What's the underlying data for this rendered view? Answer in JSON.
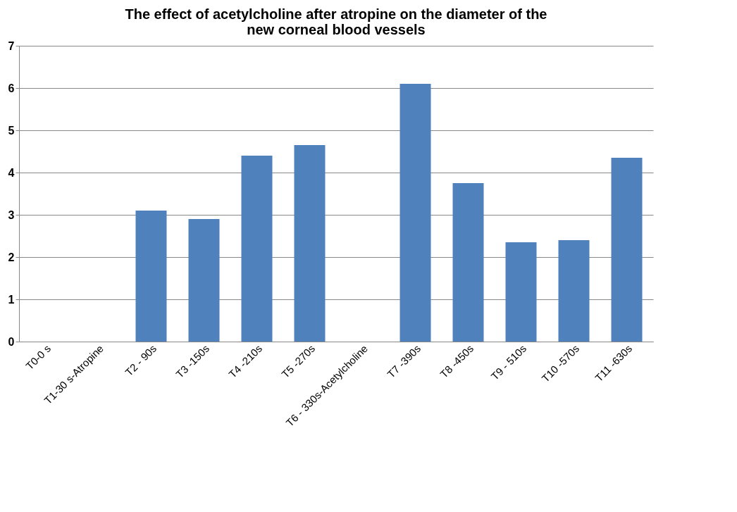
{
  "chart_data": {
    "type": "bar",
    "title": "The effect of acetylcholine after atropine on the diameter of the new corneal blood vessels",
    "categories": [
      "T0-0 s",
      "T1-30 s-Atropine",
      "T2 - 90s",
      "T3 -150s",
      "T4 -210s",
      "T5 -270s",
      "T6 - 330s-Acetylcholine",
      "T7 -390s",
      "T8 -450s",
      "T9 - 510s",
      "T10 -570s",
      "T11 -630s"
    ],
    "values": [
      0,
      null,
      3.1,
      2.9,
      4.4,
      4.65,
      null,
      6.1,
      3.75,
      2.35,
      2.4,
      4.35
    ],
    "color": "#4f81bd",
    "ylim": [
      0,
      7
    ],
    "yticks": [
      0,
      1,
      2,
      3,
      4,
      5,
      6,
      7
    ],
    "grid": "y"
  }
}
